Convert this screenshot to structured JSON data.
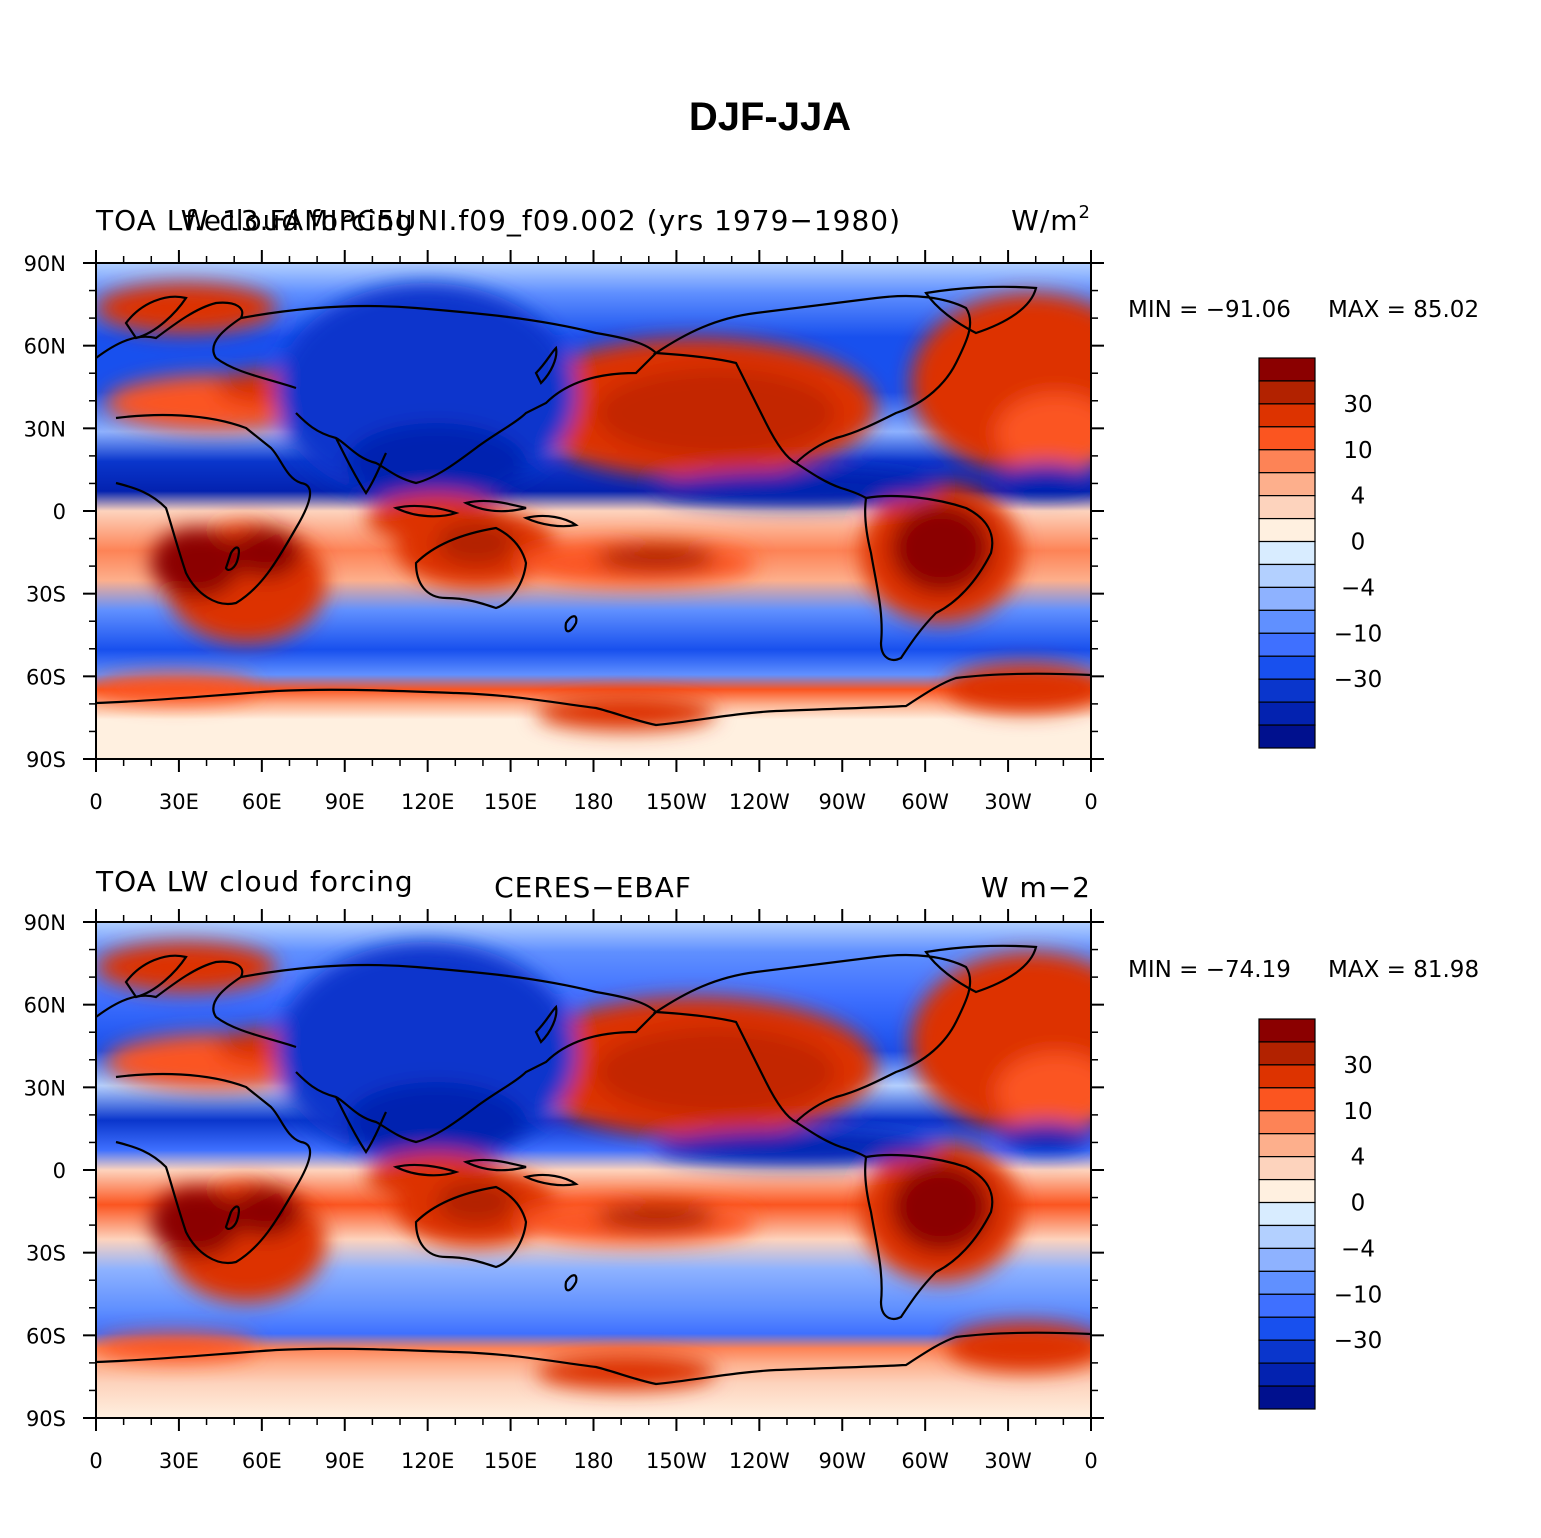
{
  "figure_title": "DJF-JJA",
  "chart_data": [
    {
      "type": "heatmap",
      "title": "f.e13.FAMIPC5UNI.f09_f09.002 (yrs 1979-1980)",
      "left_title": "TOA LW cloud forcing",
      "center_title": "f.e13.FAMIPC5UNI.f09_f09.002 (yrs 1979−1980)",
      "units_base": "W/m",
      "units_sup": "2",
      "min_label": "MIN = −91.06",
      "max_label": "MAX =  85.02",
      "min": -91.06,
      "max": 85.02
    },
    {
      "type": "heatmap",
      "title": "CERES-EBAF",
      "left_title": "TOA LW cloud forcing",
      "center_title": "CERES−EBAF",
      "units_base": "W m−2",
      "units_sup": "",
      "min_label": "MIN = −74.19",
      "max_label": "MAX =  81.98",
      "min": -74.19,
      "max": 81.98
    }
  ],
  "axes": {
    "x_ticks": [
      "0",
      "30E",
      "60E",
      "90E",
      "120E",
      "150E",
      "180",
      "150W",
      "120W",
      "90W",
      "60W",
      "30W",
      "0"
    ],
    "y_ticks": [
      "90N",
      "60N",
      "30N",
      "0",
      "30S",
      "60S",
      "90S"
    ],
    "xlim": [
      0,
      360
    ],
    "ylim": [
      -90,
      90
    ]
  },
  "colorbar": {
    "colors": [
      "#8b0000",
      "#b22200",
      "#dd3300",
      "#fb5520",
      "#fd8356",
      "#fdaf8c",
      "#fdd3bd",
      "#fff0e0",
      "#d8ecff",
      "#b3d0ff",
      "#8eb2ff",
      "#6090ff",
      "#3f70ff",
      "#1850ee",
      "#0a36cc",
      "#0322b0",
      "#00108e"
    ],
    "labels": [
      "30",
      "10",
      "4",
      "0",
      "−4",
      "−10",
      "−30"
    ],
    "label_boundaries": [
      2,
      4,
      6,
      8,
      10,
      12,
      14
    ]
  }
}
